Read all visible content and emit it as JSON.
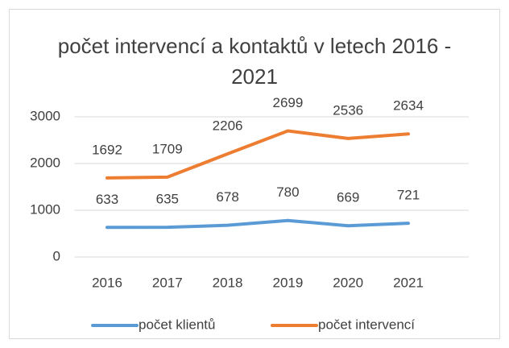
{
  "chart_data": {
    "type": "line",
    "title": "počet intervencí a kontaktů v letech 2016 - 2021",
    "categories": [
      "2016",
      "2017",
      "2018",
      "2019",
      "2020",
      "2021"
    ],
    "series": [
      {
        "name": "počet klientů",
        "color": "#5b9bd5",
        "values": [
          633,
          635,
          678,
          780,
          669,
          721
        ]
      },
      {
        "name": "počet intervencí",
        "color": "#ed7d31",
        "values": [
          1692,
          1709,
          2206,
          2699,
          2536,
          2634
        ]
      }
    ],
    "ylim": [
      0,
      3000
    ],
    "yticks": [
      0,
      1000,
      2000,
      3000
    ],
    "grid": true,
    "legend": "bottom"
  }
}
